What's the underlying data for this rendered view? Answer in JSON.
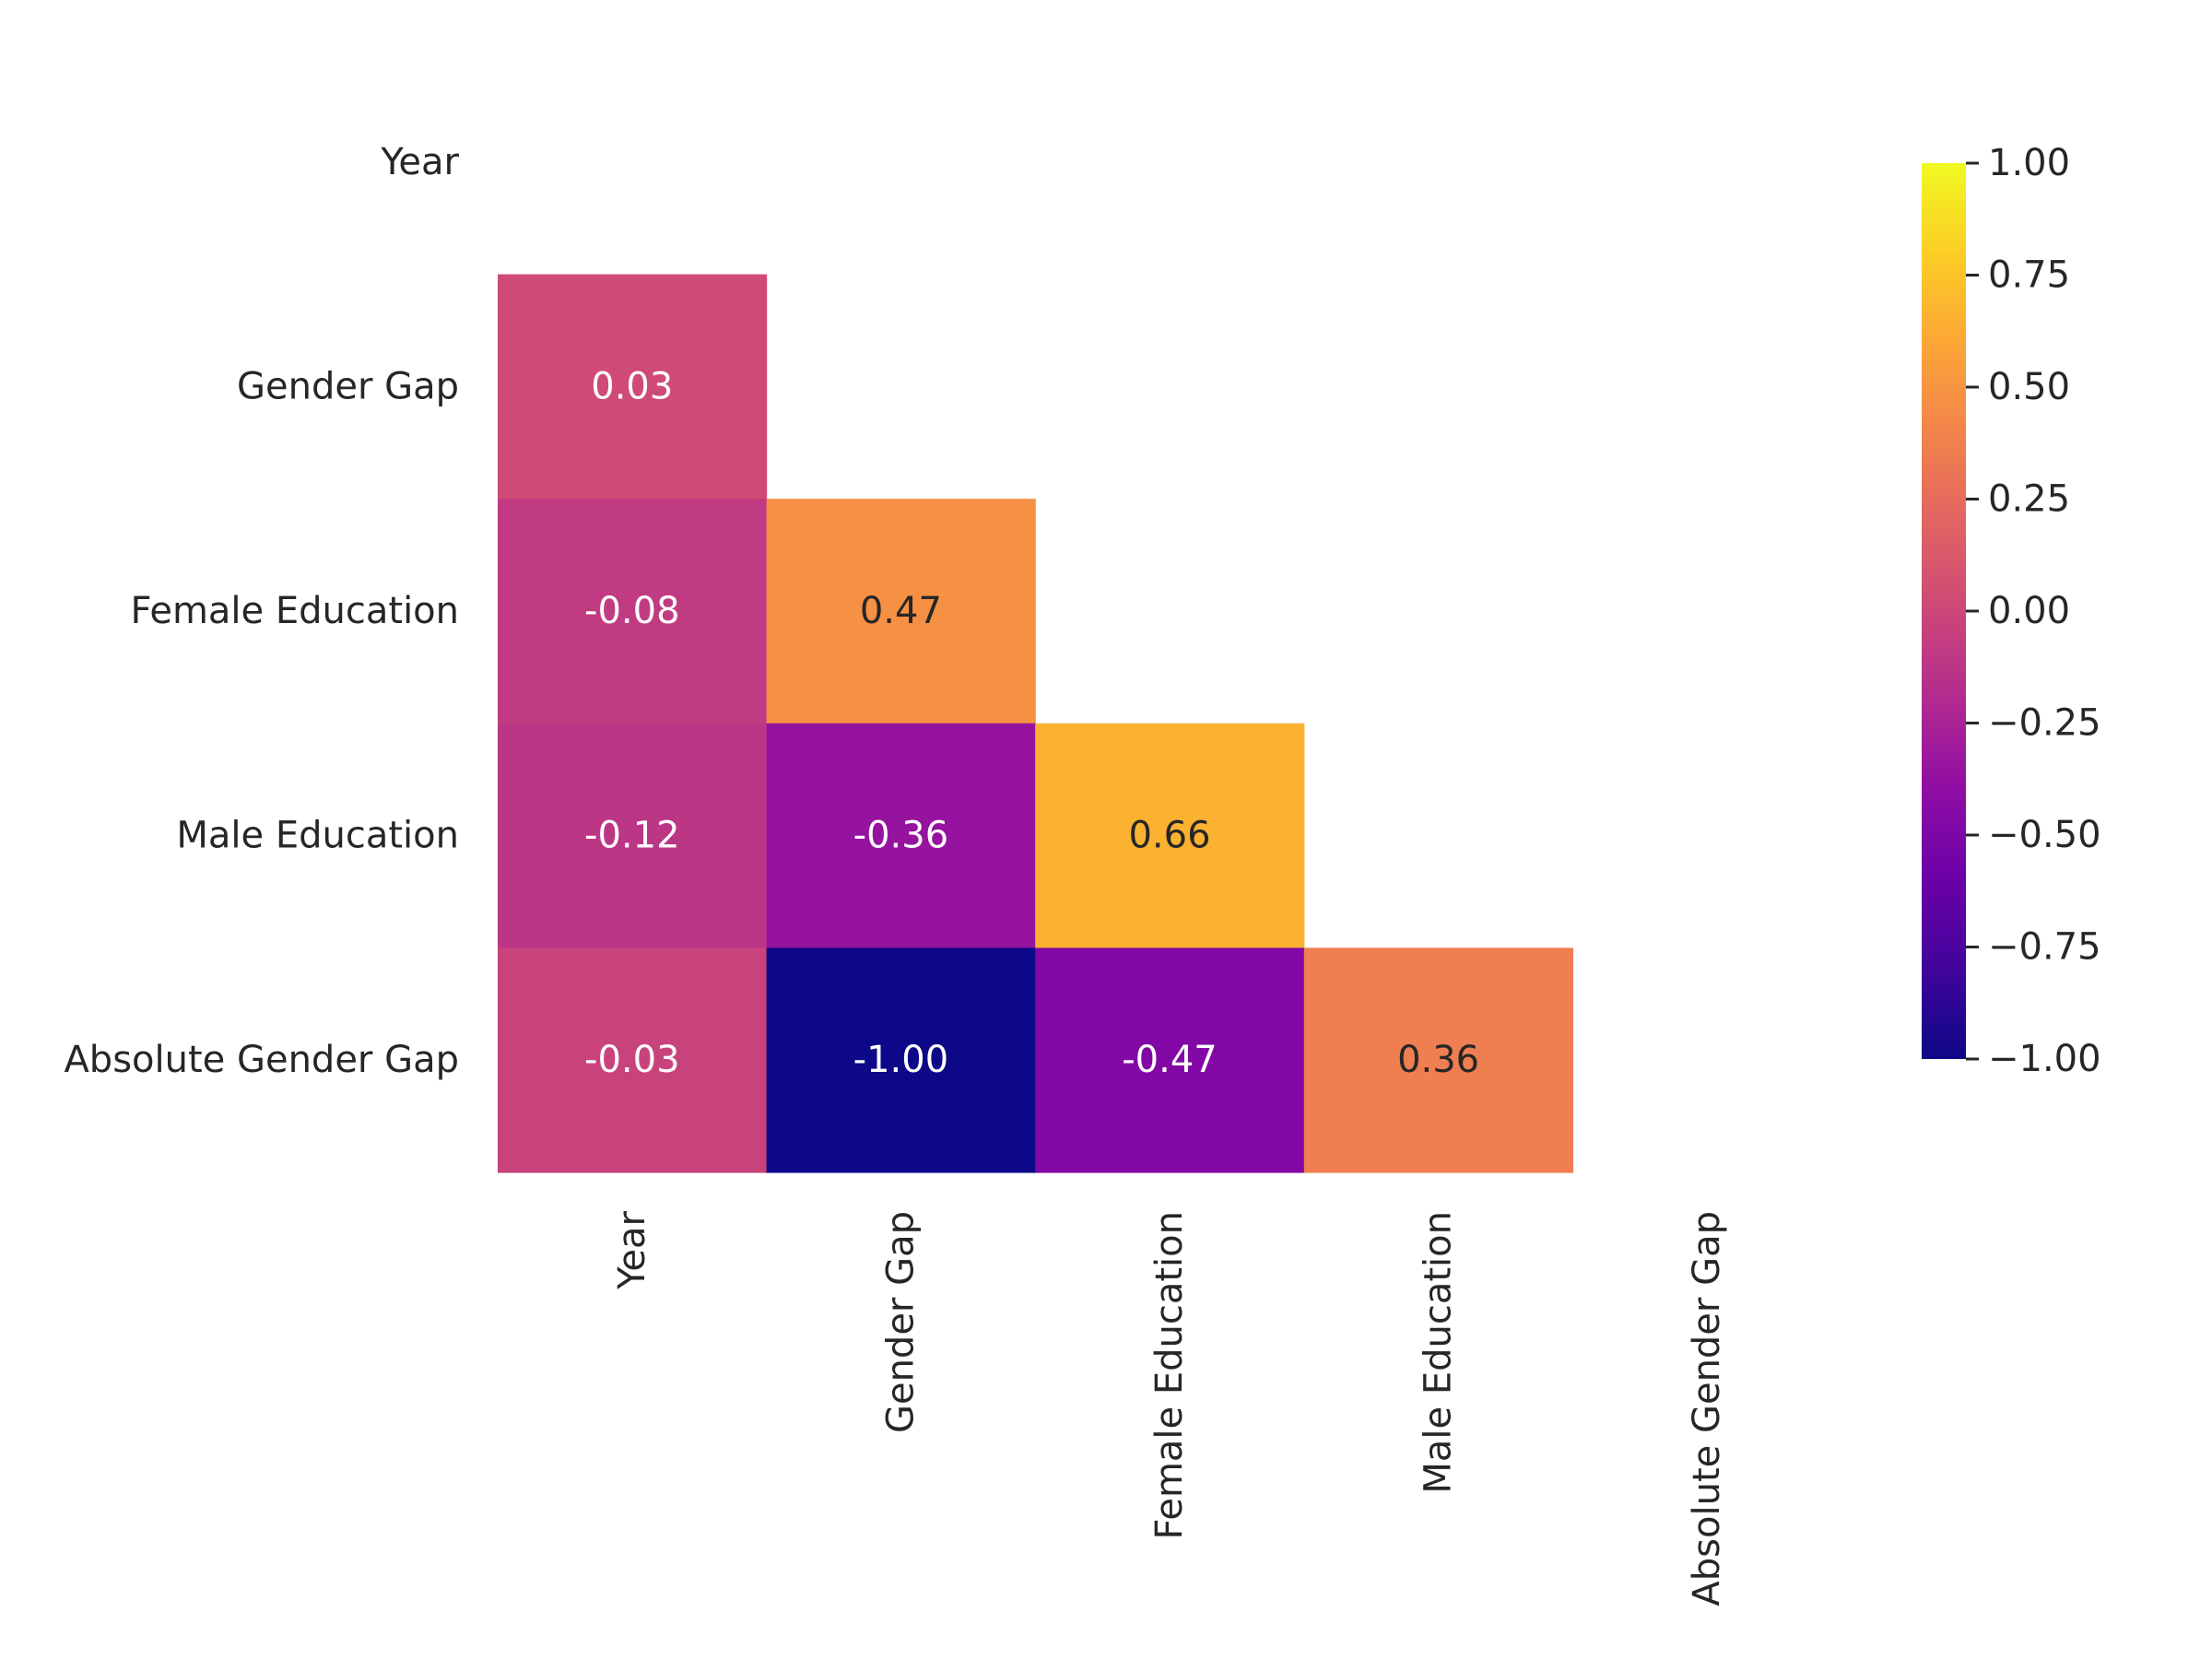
{
  "chart_data": {
    "type": "heatmap",
    "labels": [
      "Year",
      "Gender Gap",
      "Female Education",
      "Male Education",
      "Absolute Gender Gap"
    ],
    "mask": "upper-triangle-including-diagonal",
    "cells": [
      {
        "row": "Gender Gap",
        "col": "Year",
        "value": 0.03,
        "label": "0.03"
      },
      {
        "row": "Female Education",
        "col": "Year",
        "value": -0.08,
        "label": "-0.08"
      },
      {
        "row": "Female Education",
        "col": "Gender Gap",
        "value": 0.47,
        "label": "0.47"
      },
      {
        "row": "Male Education",
        "col": "Year",
        "value": -0.12,
        "label": "-0.12"
      },
      {
        "row": "Male Education",
        "col": "Gender Gap",
        "value": -0.36,
        "label": "-0.36"
      },
      {
        "row": "Male Education",
        "col": "Female Education",
        "value": 0.66,
        "label": "0.66"
      },
      {
        "row": "Absolute Gender Gap",
        "col": "Year",
        "value": -0.03,
        "label": "-0.03"
      },
      {
        "row": "Absolute Gender Gap",
        "col": "Gender Gap",
        "value": -1.0,
        "label": "-1.00"
      },
      {
        "row": "Absolute Gender Gap",
        "col": "Female Education",
        "value": -0.47,
        "label": "-0.47"
      },
      {
        "row": "Absolute Gender Gap",
        "col": "Male Education",
        "value": 0.36,
        "label": "0.36"
      }
    ],
    "colormap": "plasma",
    "colorbar": {
      "range": [
        -1.0,
        1.0
      ],
      "ticks": [
        "1.00",
        "0.75",
        "0.50",
        "0.25",
        "0.00",
        "−0.25",
        "−0.50",
        "−0.75",
        "−1.00"
      ],
      "tick_values": [
        1.0,
        0.75,
        0.5,
        0.25,
        0.0,
        -0.25,
        -0.5,
        -0.75,
        -1.0
      ],
      "placement": "right"
    },
    "annotation_text_colors": {
      "dark": "#262626",
      "light": "#ffffff"
    }
  }
}
